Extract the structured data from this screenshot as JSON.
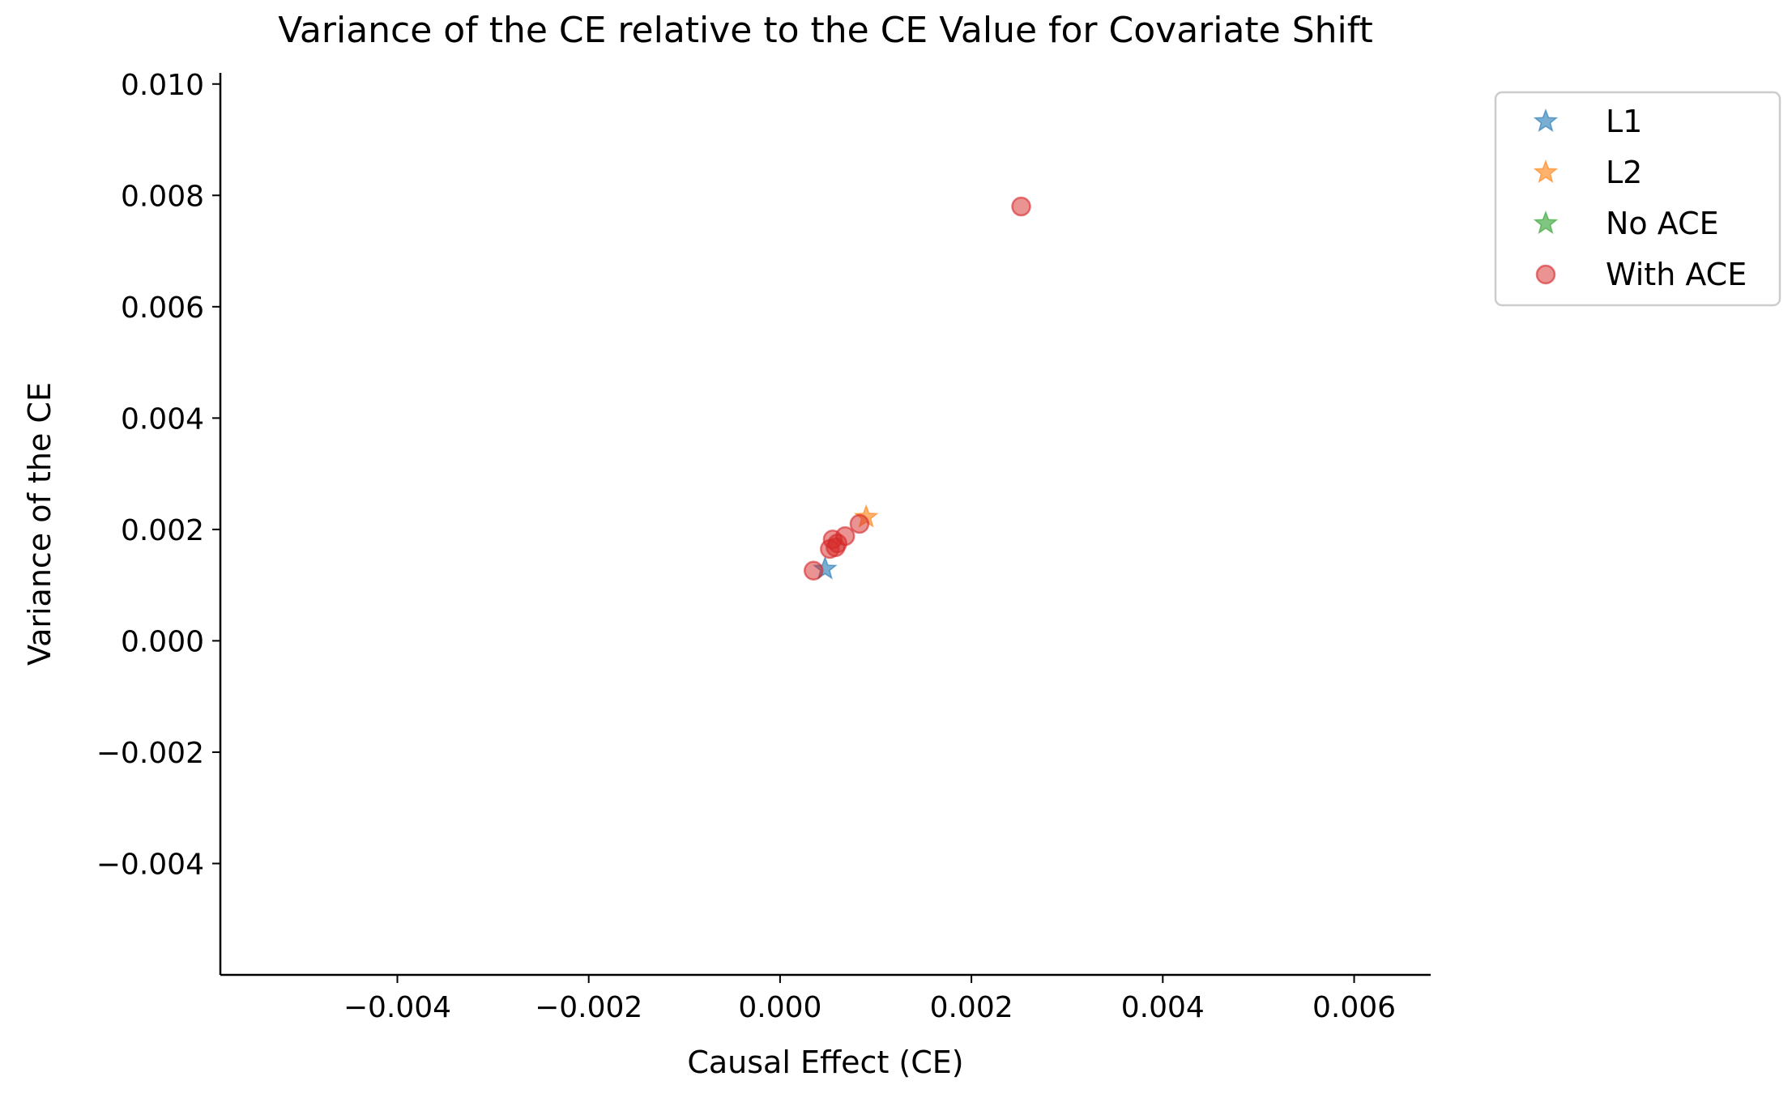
{
  "chart_data": {
    "type": "scatter",
    "title": "Variance of the CE relative to the CE Value for Covariate Shift",
    "xlabel": "Causal Effect (CE)",
    "ylabel": "Variance of the CE",
    "xlim": [
      -0.00585,
      0.0068
    ],
    "ylim": [
      -0.006,
      0.0102
    ],
    "xticks": [
      -0.004,
      -0.002,
      0.0,
      0.002,
      0.004,
      0.006
    ],
    "xtick_labels": [
      "−0.004",
      "−0.002",
      "0.000",
      "0.002",
      "0.004",
      "0.006"
    ],
    "yticks": [
      -0.004,
      -0.002,
      0.0,
      0.002,
      0.004,
      0.006,
      0.008,
      0.01
    ],
    "ytick_labels": [
      "−0.004",
      "−0.002",
      "0.000",
      "0.002",
      "0.004",
      "0.006",
      "0.008",
      "0.010"
    ],
    "grid": false,
    "legend_position": "outside-top-right",
    "series": [
      {
        "name": "L1",
        "marker": "star",
        "color": "#1f77b4",
        "points": [
          [
            0.00047,
            0.00129
          ]
        ]
      },
      {
        "name": "L2",
        "marker": "star",
        "color": "#ff7f0e",
        "points": [
          [
            0.0009,
            0.00222
          ]
        ]
      },
      {
        "name": "No ACE",
        "marker": "star",
        "color": "#2ca02c",
        "points": []
      },
      {
        "name": "With ACE",
        "marker": "circle",
        "color": "#d62728",
        "points": [
          [
            0.00252,
            0.0078
          ],
          [
            0.00035,
            0.00126
          ],
          [
            0.00052,
            0.00165
          ],
          [
            0.00055,
            0.00182
          ],
          [
            0.00058,
            0.00168
          ],
          [
            0.0006,
            0.00175
          ],
          [
            0.00068,
            0.00188
          ],
          [
            0.00083,
            0.0021
          ]
        ]
      }
    ]
  }
}
